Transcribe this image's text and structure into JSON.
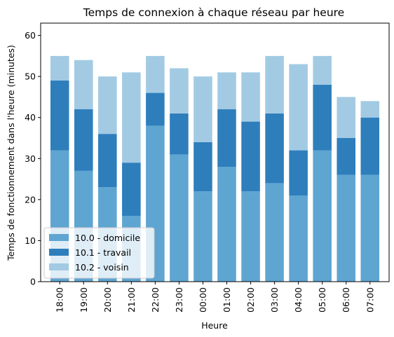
{
  "chart_data": {
    "type": "bar",
    "stacked": true,
    "title": "Temps de connexion à chaque réseau par heure",
    "xlabel": "Heure",
    "ylabel": "Temps de fonctionnement dans l'heure (minutes)",
    "ylim": [
      0,
      63
    ],
    "yticks": [
      0,
      10,
      20,
      30,
      40,
      50,
      60
    ],
    "grid": false,
    "legend_position": "lower-left",
    "categories": [
      "18:00",
      "19:00",
      "20:00",
      "21:00",
      "22:00",
      "23:00",
      "00:00",
      "01:00",
      "02:00",
      "03:00",
      "04:00",
      "05:00",
      "06:00",
      "07:00"
    ],
    "series": [
      {
        "name": "10.0 - domicile",
        "color": "#5fa5d2",
        "values": [
          32,
          27,
          23,
          16,
          38,
          31,
          22,
          28,
          22,
          24,
          21,
          32,
          26,
          26
        ]
      },
      {
        "name": "10.1 - travail",
        "color": "#2e7ebc",
        "values": [
          17,
          15,
          13,
          13,
          8,
          10,
          12,
          14,
          17,
          17,
          11,
          16,
          9,
          14
        ]
      },
      {
        "name": "10.2 - voisin",
        "color": "#a2cae3",
        "values": [
          6,
          12,
          14,
          22,
          9,
          11,
          16,
          9,
          12,
          14,
          21,
          7,
          10,
          4
        ]
      }
    ]
  }
}
